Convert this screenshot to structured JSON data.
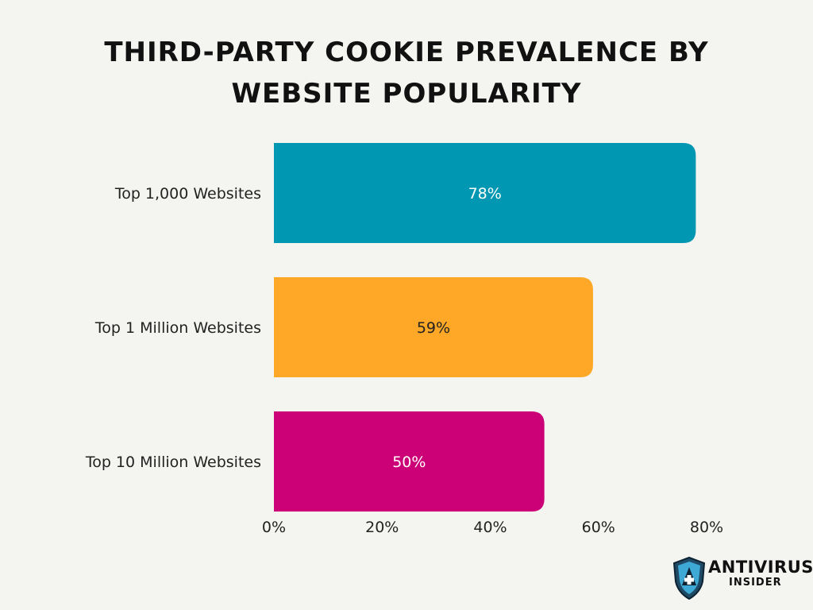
{
  "title": {
    "line1": "Third-Party Cookie Prevalence by",
    "line2": "Website Popularity"
  },
  "chart_data": {
    "type": "bar",
    "orientation": "horizontal",
    "title": "Third-Party Cookie Prevalence by Website Popularity",
    "categories": [
      "Top 1,000 Websites",
      "Top 1 Million Websites",
      "Top 10 Million Websites"
    ],
    "values": [
      78,
      59,
      50
    ],
    "data_labels": [
      "78%",
      "59%",
      "50%"
    ],
    "colors": [
      "#0097b2",
      "#ffa726",
      "#cc0077"
    ],
    "label_colors": [
      "#ffffff",
      "#222222",
      "#ffffff"
    ],
    "xlim": [
      0,
      80
    ],
    "x_ticks": [
      "0%",
      "20%",
      "40%",
      "60%",
      "80%"
    ],
    "x_tick_values": [
      0,
      20,
      40,
      60,
      80
    ],
    "grid": false,
    "legend": "none"
  },
  "logo": {
    "name_line1": "ANTIVIRUS",
    "name_line2": "INSIDER",
    "icon": "shield-plus-icon"
  }
}
